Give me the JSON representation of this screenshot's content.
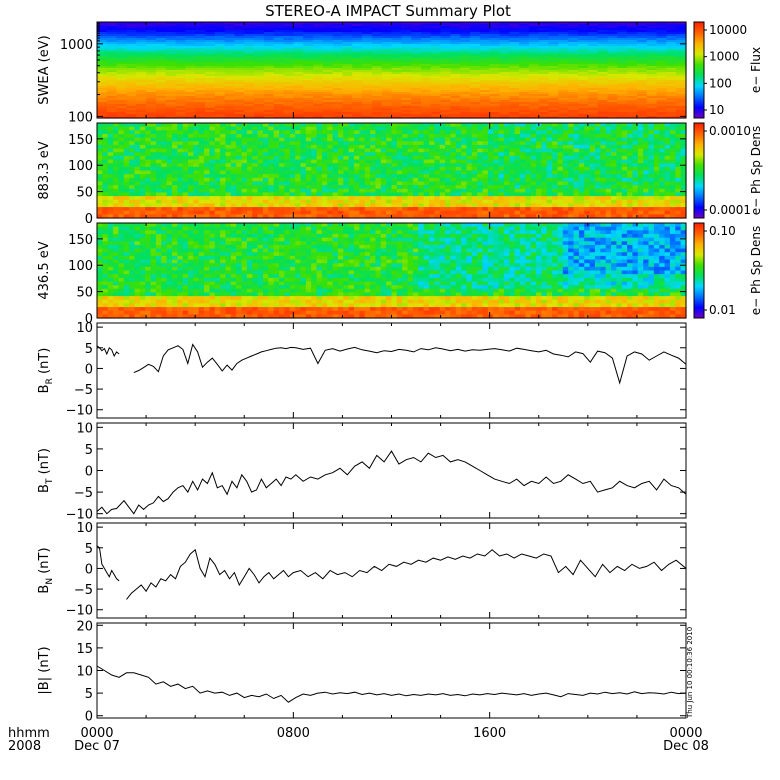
{
  "title": "STEREO-A IMPACT Summary Plot",
  "timestamp_label": "Thu Jun 10 00:10:36 2010",
  "x_axis": {
    "row1_label": "hhmm",
    "row2_label": "2008",
    "ticks": [
      {
        "hours": 0,
        "hhmm": "0000",
        "date": "Dec 07"
      },
      {
        "hours": 8,
        "hhmm": "0800",
        "date": ""
      },
      {
        "hours": 16,
        "hhmm": "1600",
        "date": ""
      },
      {
        "hours": 24,
        "hhmm": "0000",
        "date": "Dec 08"
      }
    ],
    "range_hours": [
      0,
      24
    ]
  },
  "colors": {
    "spectrum": [
      "#7000c8",
      "#0000ff",
      "#0070ff",
      "#00d8ff",
      "#00e060",
      "#40e000",
      "#d8e800",
      "#ffb000",
      "#ff6000",
      "#ff2000"
    ],
    "line": "#000000"
  },
  "chart_data": [
    {
      "type": "heatmap",
      "id": "swea",
      "ylabel": "SWEA (eV)",
      "yscale": "log",
      "yticks": [
        "100",
        "1000"
      ],
      "ylim": [
        95,
        2000
      ],
      "colorbar_label": "e− Flux",
      "colorbar_ticks": [
        "10000",
        "1000",
        "100",
        "10"
      ],
      "profile": [
        {
          "energy_eV": 2000,
          "level": 0.05
        },
        {
          "energy_eV": 1500,
          "level": 0.12
        },
        {
          "energy_eV": 1000,
          "level": 0.3
        },
        {
          "energy_eV": 700,
          "level": 0.45
        },
        {
          "energy_eV": 450,
          "level": 0.6
        },
        {
          "energy_eV": 300,
          "level": 0.72
        },
        {
          "energy_eV": 200,
          "level": 0.82
        },
        {
          "energy_eV": 130,
          "level": 0.9
        },
        {
          "energy_eV": 95,
          "level": 0.95
        }
      ]
    },
    {
      "type": "heatmap",
      "id": "pad883",
      "ylabel": "883.3 eV",
      "yticks": [
        "0",
        "50",
        "100",
        "150"
      ],
      "ylim": [
        0,
        180
      ],
      "colorbar_label": "e− Ph Sp Dens",
      "colorbar_ticks": [
        "0.0010",
        "0.0001"
      ]
    },
    {
      "type": "heatmap",
      "id": "pad436",
      "ylabel": "436.5 eV",
      "yticks": [
        "0",
        "50",
        "100",
        "150"
      ],
      "ylim": [
        0,
        180
      ],
      "colorbar_label": "e− Ph Sp Dens",
      "colorbar_ticks": [
        "0.10",
        "0.01"
      ]
    },
    {
      "type": "line",
      "id": "br",
      "ylabel_main": "B",
      "ylabel_sub": "R",
      "ylabel_unit": " (nT)",
      "ylim": [
        -12,
        11
      ],
      "yticks": [
        "10",
        "5",
        "0",
        "−5",
        "−10"
      ],
      "gap_after_hours": 0.9,
      "gap_before_hours": 1.5,
      "x": [
        0,
        0.1,
        0.2,
        0.3,
        0.4,
        0.5,
        0.6,
        0.7,
        0.8,
        0.9,
        1.5,
        1.7,
        1.9,
        2.1,
        2.3,
        2.5,
        2.7,
        2.9,
        3.1,
        3.3,
        3.5,
        3.7,
        3.9,
        4.1,
        4.3,
        4.5,
        4.7,
        4.9,
        5.1,
        5.3,
        5.5,
        5.7,
        5.9,
        6.1,
        6.3,
        6.5,
        6.7,
        6.9,
        7.1,
        7.3,
        7.5,
        7.7,
        7.9,
        8.1,
        8.4,
        8.7,
        9.0,
        9.3,
        9.6,
        9.9,
        10.2,
        10.5,
        10.8,
        11.1,
        11.4,
        11.7,
        12.0,
        12.3,
        12.6,
        12.9,
        13.2,
        13.5,
        13.8,
        14.1,
        14.4,
        14.7,
        15.0,
        15.3,
        15.6,
        15.9,
        16.2,
        16.5,
        16.8,
        17.1,
        17.4,
        17.7,
        18.0,
        18.3,
        18.6,
        18.9,
        19.2,
        19.5,
        19.8,
        20.1,
        20.4,
        20.7,
        21.0,
        21.3,
        21.6,
        21.9,
        22.2,
        22.5,
        22.8,
        23.1,
        23.4,
        23.7,
        24.0
      ],
      "y": [
        5.5,
        5.0,
        4.3,
        4.8,
        3.5,
        5.0,
        4.5,
        3.0,
        4.0,
        3.5,
        -1.0,
        -0.5,
        0.2,
        1.0,
        0.5,
        -0.8,
        3.0,
        4.5,
        5.0,
        5.5,
        4.6,
        1.2,
        5.8,
        4.0,
        0.3,
        1.5,
        2.5,
        1.0,
        -0.6,
        0.8,
        -0.4,
        1.2,
        2.0,
        2.5,
        3.0,
        3.5,
        4.0,
        4.3,
        4.6,
        4.9,
        5.0,
        4.8,
        5.1,
        5.0,
        4.6,
        4.9,
        1.2,
        4.4,
        4.8,
        4.2,
        4.7,
        5.1,
        4.5,
        4.2,
        3.8,
        4.3,
        4.1,
        4.6,
        4.4,
        4.0,
        4.8,
        4.5,
        5.0,
        4.7,
        4.3,
        4.6,
        4.2,
        4.5,
        4.4,
        4.6,
        4.8,
        4.5,
        4.2,
        4.9,
        4.6,
        4.3,
        4.0,
        4.4,
        3.5,
        3.2,
        2.8,
        4.0,
        3.6,
        1.5,
        4.2,
        3.8,
        2.5,
        -3.5,
        3.0,
        4.0,
        3.5,
        2.0,
        3.0,
        4.0,
        3.2,
        2.5,
        1.0
      ]
    },
    {
      "type": "line",
      "id": "bt",
      "ylabel_main": "B",
      "ylabel_sub": "T",
      "ylabel_unit": " (nT)",
      "ylim": [
        -11,
        11
      ],
      "yticks": [
        "10",
        "5",
        "0",
        "−5",
        "−10"
      ],
      "x": [
        0,
        0.2,
        0.4,
        0.6,
        0.8,
        1.1,
        1.3,
        1.5,
        1.7,
        1.9,
        2.1,
        2.3,
        2.5,
        2.7,
        2.9,
        3.1,
        3.3,
        3.5,
        3.7,
        3.9,
        4.1,
        4.3,
        4.5,
        4.7,
        4.9,
        5.1,
        5.3,
        5.5,
        5.7,
        5.9,
        6.1,
        6.3,
        6.5,
        6.7,
        6.9,
        7.1,
        7.3,
        7.5,
        7.7,
        7.9,
        8.1,
        8.4,
        8.7,
        9.0,
        9.3,
        9.6,
        9.9,
        10.2,
        10.5,
        10.8,
        11.1,
        11.4,
        11.7,
        12.0,
        12.3,
        12.6,
        12.9,
        13.2,
        13.5,
        13.8,
        14.1,
        14.4,
        14.7,
        15.0,
        15.3,
        15.6,
        15.9,
        16.2,
        16.5,
        16.8,
        17.1,
        17.4,
        17.7,
        18.0,
        18.3,
        18.6,
        18.9,
        19.2,
        19.5,
        19.8,
        20.1,
        20.4,
        20.7,
        21.0,
        21.3,
        21.6,
        21.9,
        22.2,
        22.5,
        22.8,
        23.1,
        23.4,
        23.7,
        24.0
      ],
      "y": [
        -9.5,
        -8.5,
        -10.0,
        -9.0,
        -8.8,
        -7.0,
        -8.5,
        -10.0,
        -8.0,
        -9.0,
        -8.0,
        -7.5,
        -6.0,
        -7.2,
        -6.5,
        -5.0,
        -4.0,
        -3.5,
        -5.0,
        -2.5,
        -4.5,
        -2.0,
        -3.0,
        -0.5,
        -4.0,
        -3.5,
        -5.5,
        -2.5,
        -4.0,
        -1.0,
        -2.5,
        -5.0,
        -4.5,
        -2.0,
        -4.0,
        -3.0,
        -2.0,
        -3.5,
        -1.5,
        -2.0,
        -1.0,
        -2.5,
        -1.5,
        -2.0,
        -1.0,
        -0.5,
        0.5,
        -1.0,
        1.0,
        2.0,
        0.5,
        3.5,
        2.0,
        4.5,
        1.5,
        2.5,
        3.0,
        2.0,
        4.0,
        3.0,
        3.5,
        2.0,
        2.5,
        2.0,
        1.0,
        0.0,
        -1.0,
        -2.0,
        -2.5,
        -3.0,
        -2.0,
        -3.5,
        -2.5,
        -3.0,
        -1.5,
        -3.0,
        -2.5,
        -1.0,
        -2.0,
        -3.0,
        -2.5,
        -5.0,
        -4.5,
        -4.0,
        -2.5,
        -3.5,
        -4.0,
        -3.0,
        -2.5,
        -4.5,
        -2.0,
        -3.5,
        -4.0,
        -5.5
      ]
    },
    {
      "type": "line",
      "id": "bn",
      "ylabel_main": "B",
      "ylabel_sub": "N",
      "ylabel_unit": " (nT)",
      "ylim": [
        -12,
        11
      ],
      "yticks": [
        "10",
        "5",
        "0",
        "−5",
        "−10"
      ],
      "gap_after_hours": 0.9,
      "gap_before_hours": 1.2,
      "x": [
        0,
        0.1,
        0.2,
        0.3,
        0.4,
        0.5,
        0.6,
        0.7,
        0.8,
        0.9,
        1.2,
        1.4,
        1.6,
        1.8,
        2.0,
        2.2,
        2.4,
        2.6,
        2.8,
        3.0,
        3.2,
        3.4,
        3.6,
        3.8,
        4.0,
        4.2,
        4.4,
        4.6,
        4.8,
        5.0,
        5.2,
        5.4,
        5.6,
        5.8,
        6.0,
        6.2,
        6.4,
        6.6,
        6.8,
        7.0,
        7.2,
        7.4,
        7.6,
        7.8,
        8.0,
        8.3,
        8.6,
        8.9,
        9.2,
        9.5,
        9.8,
        10.1,
        10.4,
        10.7,
        11.0,
        11.3,
        11.6,
        11.9,
        12.2,
        12.5,
        12.8,
        13.1,
        13.4,
        13.7,
        14.0,
        14.3,
        14.6,
        14.9,
        15.2,
        15.5,
        15.8,
        16.1,
        16.4,
        16.7,
        17.0,
        17.3,
        17.6,
        17.9,
        18.2,
        18.5,
        18.8,
        19.1,
        19.4,
        19.7,
        20.0,
        20.3,
        20.6,
        20.9,
        21.2,
        21.5,
        21.8,
        22.1,
        22.4,
        22.7,
        23.0,
        23.3,
        23.6,
        24.0
      ],
      "y": [
        5.5,
        5.0,
        1.0,
        0.0,
        -1.0,
        -2.0,
        -0.5,
        -1.5,
        -2.5,
        -3.0,
        -7.5,
        -6.0,
        -5.0,
        -4.0,
        -5.5,
        -3.5,
        -4.5,
        -2.5,
        -3.0,
        -1.5,
        -2.5,
        0.5,
        1.5,
        3.5,
        4.5,
        0.0,
        -2.0,
        2.5,
        1.0,
        -1.5,
        -0.5,
        -2.5,
        -1.0,
        -4.0,
        -2.0,
        0.0,
        -1.5,
        -3.5,
        -2.0,
        -1.0,
        -2.5,
        -1.5,
        -0.5,
        -2.0,
        -1.0,
        -0.5,
        -2.0,
        -1.0,
        -2.5,
        -0.5,
        -1.5,
        -1.0,
        -2.0,
        -0.5,
        -1.0,
        0.5,
        -0.5,
        1.0,
        0.5,
        1.5,
        1.0,
        2.0,
        1.5,
        2.5,
        2.0,
        2.8,
        2.2,
        3.0,
        2.5,
        3.5,
        3.0,
        4.5,
        3.0,
        3.5,
        2.5,
        3.5,
        3.0,
        2.5,
        3.5,
        3.0,
        -1.0,
        0.5,
        -1.5,
        2.0,
        0.0,
        -2.0,
        1.0,
        -1.0,
        0.5,
        -0.5,
        1.0,
        0.0,
        0.5,
        1.5,
        -0.5,
        1.0,
        2.0,
        0.0
      ]
    },
    {
      "type": "line",
      "id": "bmag",
      "ylabel_main": "|B|",
      "ylabel_sub": "",
      "ylabel_unit": " (nT)",
      "ylim": [
        -0.5,
        20.5
      ],
      "yticks": [
        "20",
        "15",
        "10",
        "5",
        "0"
      ],
      "x": [
        0,
        0.3,
        0.6,
        0.9,
        1.2,
        1.5,
        1.8,
        2.1,
        2.4,
        2.7,
        3.0,
        3.3,
        3.6,
        3.9,
        4.2,
        4.5,
        4.8,
        5.1,
        5.4,
        5.7,
        6.0,
        6.3,
        6.6,
        6.9,
        7.2,
        7.5,
        7.8,
        8.1,
        8.4,
        8.7,
        9.0,
        9.3,
        9.6,
        9.9,
        10.2,
        10.5,
        10.8,
        11.1,
        11.4,
        11.7,
        12.0,
        12.3,
        12.6,
        12.9,
        13.2,
        13.5,
        13.8,
        14.1,
        14.4,
        14.7,
        15.0,
        15.3,
        15.6,
        15.9,
        16.2,
        16.5,
        16.8,
        17.1,
        17.4,
        17.7,
        18.0,
        18.3,
        18.6,
        18.9,
        19.2,
        19.5,
        19.8,
        20.1,
        20.4,
        20.7,
        21.0,
        21.3,
        21.6,
        21.9,
        22.2,
        22.5,
        22.8,
        23.1,
        23.4,
        23.7,
        24.0
      ],
      "y": [
        11.0,
        10.0,
        9.0,
        8.5,
        9.5,
        9.5,
        9.0,
        8.5,
        7.0,
        7.5,
        6.5,
        7.0,
        6.0,
        6.5,
        5.0,
        5.5,
        5.0,
        5.2,
        4.5,
        5.0,
        4.0,
        4.5,
        4.2,
        4.8,
        3.8,
        4.5,
        3.0,
        4.0,
        4.8,
        4.5,
        5.0,
        5.2,
        4.8,
        5.1,
        4.9,
        5.2,
        4.7,
        5.0,
        4.6,
        4.9,
        4.5,
        4.8,
        4.4,
        4.7,
        4.5,
        4.8,
        4.6,
        4.9,
        4.5,
        4.7,
        4.4,
        4.8,
        4.6,
        4.9,
        4.7,
        5.0,
        4.8,
        4.6,
        4.9,
        4.5,
        4.8,
        5.0,
        4.6,
        4.2,
        4.9,
        4.7,
        4.5,
        5.0,
        4.8,
        5.2,
        4.9,
        5.1,
        4.8,
        5.3,
        4.9,
        5.1,
        5.0,
        4.8,
        5.2,
        4.9,
        5.0
      ]
    }
  ]
}
